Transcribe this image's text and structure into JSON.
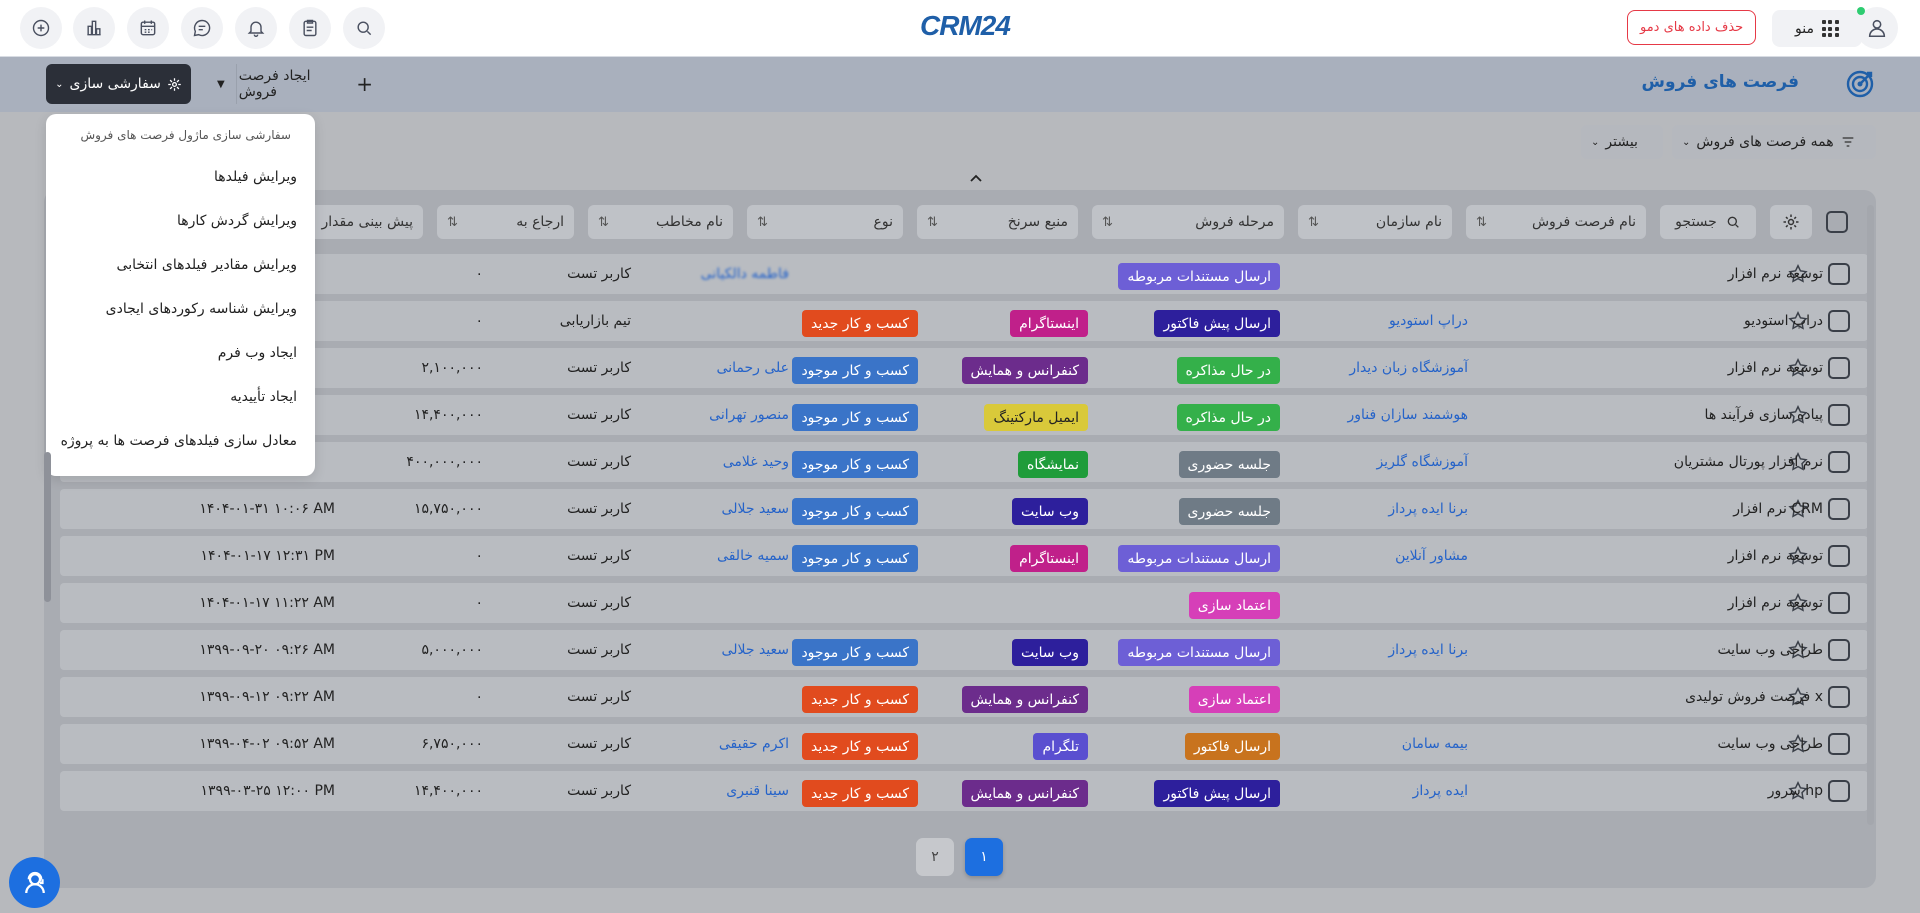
{
  "topbar": {
    "logo": "CRM24",
    "delete_demo_label": "حذف داده های دمو",
    "menu_label": "منو",
    "icons": [
      "add-icon",
      "chart-icon",
      "calendar-icon",
      "chat-icon",
      "bell-icon",
      "clipboard-icon",
      "search-icon"
    ]
  },
  "header": {
    "title": "فرصت های فروش",
    "customize_label": "سفارشی سازی",
    "create_label": "ایجاد فرصت فروش"
  },
  "filters": {
    "all_label": "همه فرصت های فروش",
    "more_label": "بیشتر"
  },
  "table": {
    "search_label": "جستجو",
    "columns": [
      "نام فرصت فروش",
      "نام سازمان",
      "مرحله فروش",
      "منبع سرنخ",
      "نوع",
      "نام مخاطب",
      "ارجاع به",
      "پیش بینی مقدار"
    ],
    "rows": [
      {
        "name": "توسعه نرم افزار",
        "org": "",
        "stage": "ارسال مستندات مربوطه",
        "stage_color": "#6d5fd6",
        "source": "",
        "source_color": "",
        "type": "",
        "type_color": "",
        "contact": "فاطمه دالکیانی",
        "assigned": "کاربر تست",
        "amount": "۰",
        "date": ""
      },
      {
        "name": "دراپ استودیو",
        "org": "دراپ استودیو",
        "stage": "ارسال پیش فاکتور",
        "stage_color": "#2d1f9c",
        "source": "اینستاگرام",
        "source_color": "#c0208a",
        "type": "کسب و کار جدید",
        "type_color": "#e14b1e",
        "contact": "",
        "assigned": "تیم بازاریابی",
        "amount": "۰",
        "date": ""
      },
      {
        "name": "توسعه نرم افزار",
        "org": "آموزشگاه زبان دیدار",
        "stage": "در حال مذاکره",
        "stage_color": "#34b04a",
        "source": "کنفرانس و همایش",
        "source_color": "#6c2c8c",
        "type": "کسب و کار موجود",
        "type_color": "#3a74c8",
        "contact": "علی رحمانی",
        "assigned": "کاربر تست",
        "amount": "۲,۱۰۰,۰۰۰",
        "date": ""
      },
      {
        "name": "پیاده سازی فرآیند ها",
        "org": "هوشمند سازان فناور",
        "stage": "در حال مذاکره",
        "stage_color": "#34b04a",
        "source": "ایمیل مارکتینگ",
        "source_color": "#d9c93a",
        "type": "کسب و کار موجود",
        "type_color": "#3a74c8",
        "contact": "منصور تهرانی",
        "assigned": "کاربر تست",
        "amount": "۱۴,۴۰۰,۰۰۰",
        "date": ""
      },
      {
        "name": "نرم افزار پورتال مشتریان",
        "org": "آموزشگاه گلریز",
        "stage": "جلسه حضوری",
        "stage_color": "#6f7b86",
        "source": "نمایشگاه",
        "source_color": "#1f9c3a",
        "type": "کسب و کار موجود",
        "type_color": "#3a74c8",
        "contact": "وحید غلامی",
        "assigned": "کاربر تست",
        "amount": "۴۰۰,۰۰۰,۰۰۰",
        "date": ""
      },
      {
        "name": "نرم افزار CRM",
        "org": "برنا ایده پرداز",
        "stage": "جلسه حضوری",
        "stage_color": "#6f7b86",
        "source": "وب سایت",
        "source_color": "#2d1f9c",
        "type": "کسب و کار موجود",
        "type_color": "#3a74c8",
        "contact": "سعید جلالی",
        "assigned": "کاربر تست",
        "amount": "۱۵,۷۵۰,۰۰۰",
        "date": "۱۴۰۴-۰۱-۳۱ ۱۰:۰۶ AM"
      },
      {
        "name": "توسعه نرم افزار",
        "org": "مشاور آنلاین",
        "stage": "ارسال مستندات مربوطه",
        "stage_color": "#6d5fd6",
        "source": "اینستاگرام",
        "source_color": "#c0208a",
        "type": "کسب و کار موجود",
        "type_color": "#3a74c8",
        "contact": "سمیه خالقی",
        "assigned": "کاربر تست",
        "amount": "۰",
        "date": "۱۴۰۴-۰۱-۱۷ ۱۲:۳۱ PM"
      },
      {
        "name": "توسعه نرم افزار",
        "org": "",
        "stage": "اعتماد سازی",
        "stage_color": "#d63fb8",
        "source": "",
        "source_color": "",
        "type": "",
        "type_color": "",
        "contact": "",
        "assigned": "کاربر تست",
        "amount": "۰",
        "date": "۱۴۰۴-۰۱-۱۷ ۱۱:۲۲ AM"
      },
      {
        "name": "طراحی وب سایت",
        "org": "برنا ایده پرداز",
        "stage": "ارسال مستندات مربوطه",
        "stage_color": "#6d5fd6",
        "source": "وب سایت",
        "source_color": "#2d1f9c",
        "type": "کسب و کار موجود",
        "type_color": "#3a74c8",
        "contact": "سعید جلالی",
        "assigned": "کاربر تست",
        "amount": "۵,۰۰۰,۰۰۰",
        "date": "۱۳۹۹-۰۹-۲۰ ۰۹:۲۶ AM"
      },
      {
        "name": "فرصت فروش تولیدی x",
        "org": "",
        "stage": "اعتماد سازی",
        "stage_color": "#d63fb8",
        "source": "کنفرانس و همایش",
        "source_color": "#6c2c8c",
        "type": "کسب و کار جدید",
        "type_color": "#e14b1e",
        "contact": "",
        "assigned": "کاربر تست",
        "amount": "۰",
        "date": "۱۳۹۹-۰۹-۱۲ ۰۹:۲۲ AM"
      },
      {
        "name": "طراحی وب سایت",
        "org": "بیمه سامان",
        "stage": "ارسال فاکتور",
        "stage_color": "#c8731e",
        "source": "تلگرام",
        "source_color": "#5a4fd0",
        "type": "کسب و کار جدید",
        "type_color": "#e14b1e",
        "contact": "اکرم حقیقی",
        "assigned": "کاربر تست",
        "amount": "۶,۷۵۰,۰۰۰",
        "date": "۱۳۹۹-۰۴-۰۲ ۰۹:۵۲ AM"
      },
      {
        "name": "سرور hp",
        "org": "ایده پرداز",
        "stage": "ارسال پیش فاکتور",
        "stage_color": "#2d1f9c",
        "source": "کنفرانس و همایش",
        "source_color": "#6c2c8c",
        "type": "کسب و کار جدید",
        "type_color": "#e14b1e",
        "contact": "سینا قنبری",
        "assigned": "کاربر تست",
        "amount": "۱۴,۴۰۰,۰۰۰",
        "date": "۱۳۹۹-۰۳-۲۵ ۱۲:۰۰ PM"
      }
    ]
  },
  "dropdown": {
    "header": "سفارشی سازی ماژول فرصت های فروش",
    "items": [
      "ویرایش فیلدها",
      "ویرایش گردش کارها",
      "ویرایش مقادیر فیلدهای انتخابی",
      "ویرایش شناسه رکوردهای ایجادی",
      "ایجاد وب فرم",
      "ایجاد تأییدیه",
      "معادل سازی فیلدهای فرصت ها به پروژه"
    ]
  },
  "pagination": {
    "pages": [
      "۱",
      "۲"
    ],
    "current": "۱"
  },
  "colors": {
    "accent": "#1d6fe0",
    "brand": "#1f5fa8",
    "danger": "#e63946"
  }
}
